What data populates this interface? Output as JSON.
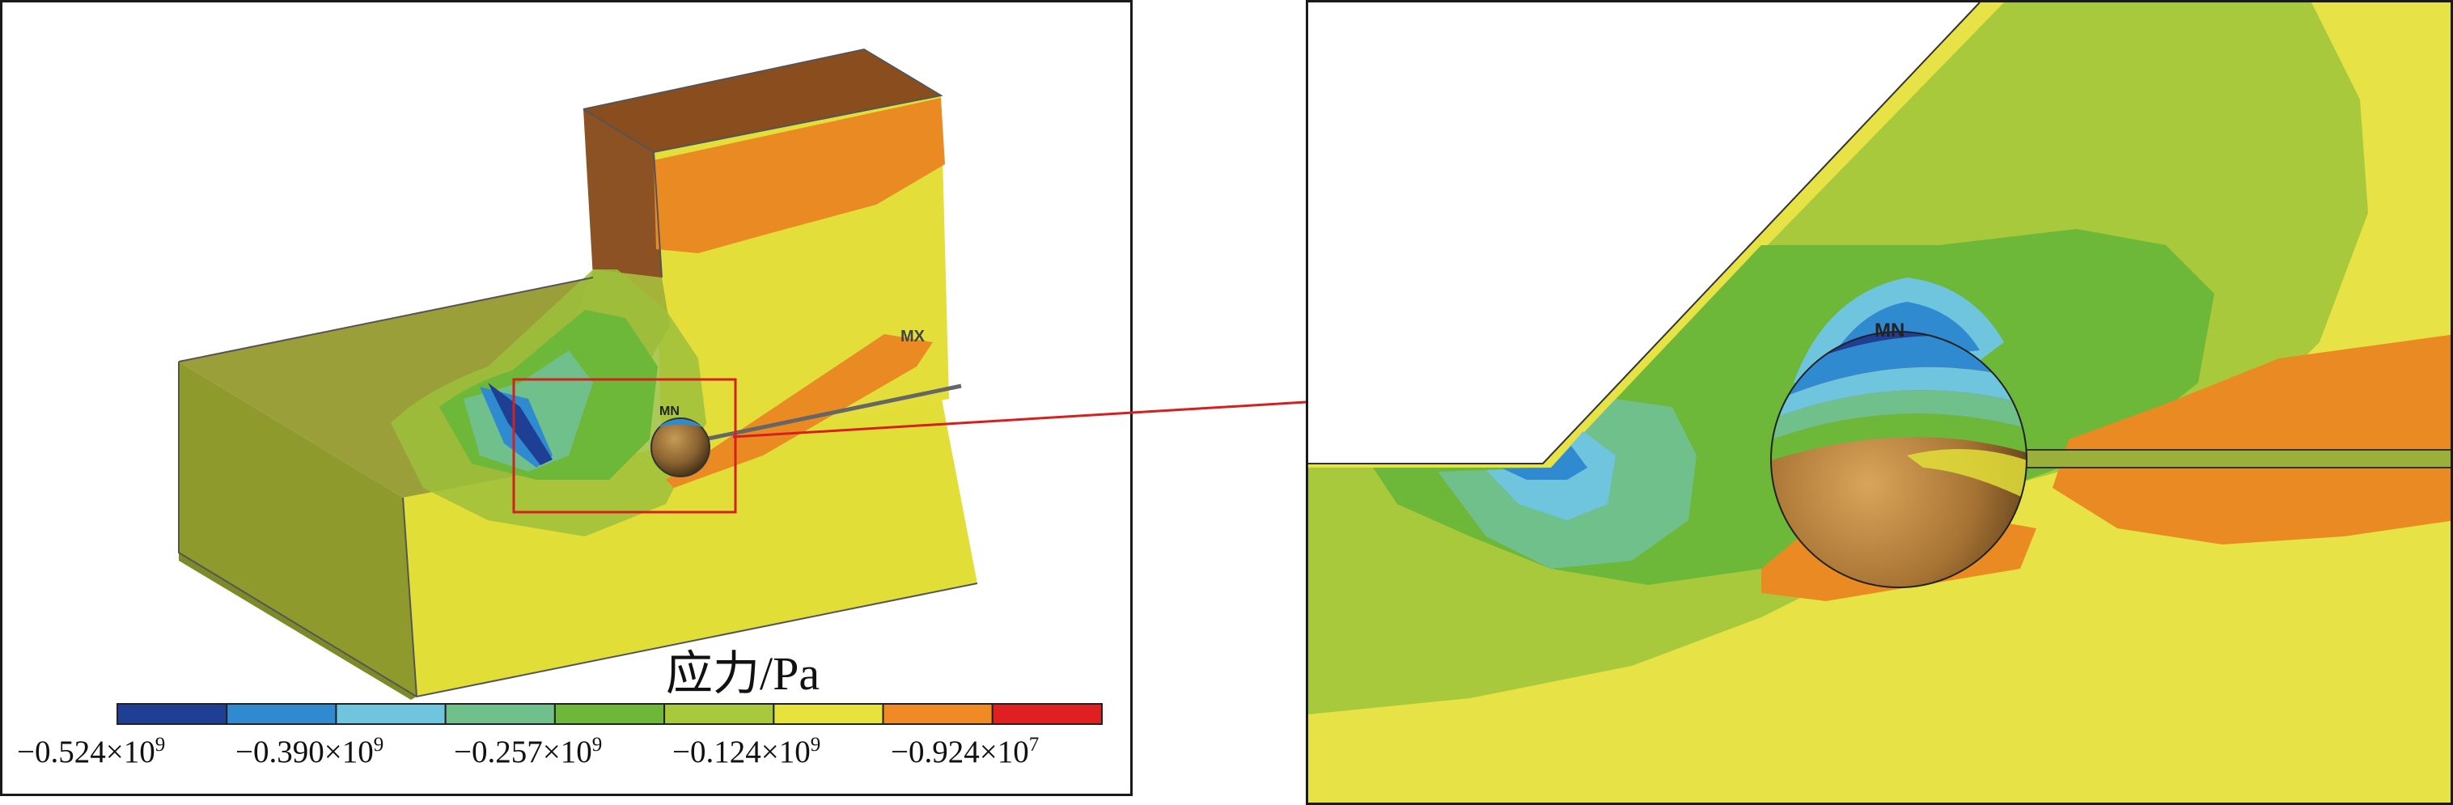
{
  "legend": {
    "title": "应力/Pa",
    "colors": [
      "#1f3f94",
      "#2f8ad0",
      "#6ec5dd",
      "#6fc08a",
      "#6db838",
      "#a9c93c",
      "#e8e23c",
      "#ef8a24",
      "#e02020"
    ],
    "labels": [
      {
        "mantissa": "−0.524×10",
        "exponent": "9"
      },
      {
        "mantissa": "−0.390×10",
        "exponent": "9"
      },
      {
        "mantissa": "−0.257×10",
        "exponent": "9"
      },
      {
        "mantissa": "−0.124×10",
        "exponent": "9"
      },
      {
        "mantissa": "−0.924×10",
        "exponent": "7"
      }
    ]
  },
  "markers": {
    "max": "MX",
    "min": "MN"
  }
}
